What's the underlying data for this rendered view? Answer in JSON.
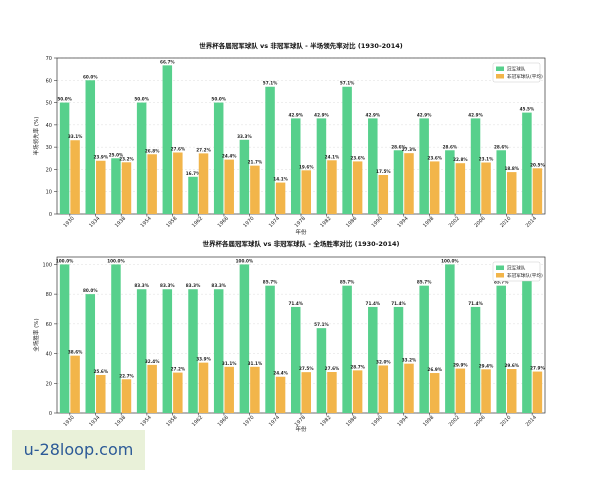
{
  "watermark": "u-28loop.com",
  "chart_data": [
    {
      "type": "bar",
      "title": "世界杯各届冠军球队 vs 非冠军球队 - 半场领先率对比 (1930-2014)",
      "xlabel": "年份",
      "ylabel": "半场领先率 (%)",
      "ylim": [
        0,
        70
      ],
      "yticks": [
        0,
        10,
        20,
        30,
        40,
        50,
        60,
        70
      ],
      "grid": true,
      "legend_position": "top-right",
      "categories": [
        "1930",
        "1934",
        "1938",
        "1954",
        "1958",
        "1962",
        "1966",
        "1970",
        "1974",
        "1978",
        "1982",
        "1986",
        "1990",
        "1994",
        "1998",
        "2002",
        "2006",
        "2010",
        "2014"
      ],
      "series": [
        {
          "name": "冠军球队",
          "color": "#57d08c",
          "values": [
            50.0,
            60.0,
            25.0,
            50.0,
            66.7,
            16.7,
            50.0,
            33.3,
            57.1,
            42.9,
            42.9,
            57.1,
            42.9,
            28.6,
            42.9,
            28.6,
            42.9,
            28.6,
            45.5
          ],
          "labels": [
            "50.0%",
            "60.0%",
            "25.0%",
            "50.0%",
            "66.7%",
            "16.7%",
            "50.0%",
            "33.3%",
            "57.1%",
            "42.9%",
            "42.9%",
            "57.1%",
            "42.9%",
            "28.6%",
            "42.9%",
            "28.6%",
            "42.9%",
            "28.6%",
            "45.5%"
          ]
        },
        {
          "name": "非冠军球队(平均)",
          "color": "#f2b54a",
          "values": [
            33.1,
            23.9,
            23.2,
            26.8,
            27.6,
            27.2,
            24.4,
            21.7,
            14.1,
            19.6,
            24.1,
            23.6,
            17.5,
            27.3,
            23.6,
            22.8,
            23.1,
            18.8,
            20.5
          ],
          "labels": [
            "33.1%",
            "23.9%",
            "23.2%",
            "26.8%",
            "27.6%",
            "27.2%",
            "24.4%",
            "21.7%",
            "14.1%",
            "19.6%",
            "24.1%",
            "23.6%",
            "17.5%",
            "27.3%",
            "23.6%",
            "22.8%",
            "23.1%",
            "18.8%",
            "20.5%"
          ]
        }
      ]
    },
    {
      "type": "bar",
      "title": "世界杯各届冠军球队 vs 非冠军球队 - 全场胜率对比 (1930-2014)",
      "xlabel": "年份",
      "ylabel": "全场胜率 (%)",
      "ylim": [
        0,
        105
      ],
      "yticks": [
        0,
        20,
        40,
        60,
        80,
        100
      ],
      "grid": true,
      "legend_position": "top-right",
      "categories": [
        "1930",
        "1934",
        "1938",
        "1954",
        "1958",
        "1962",
        "1966",
        "1970",
        "1974",
        "1978",
        "1982",
        "1986",
        "1990",
        "1994",
        "1998",
        "2002",
        "2006",
        "2010",
        "2014"
      ],
      "series": [
        {
          "name": "冠军球队",
          "color": "#57d08c",
          "values": [
            100.0,
            80.0,
            100.0,
            83.3,
            83.3,
            83.3,
            83.3,
            100.0,
            85.7,
            71.4,
            57.1,
            85.7,
            71.4,
            71.4,
            85.7,
            100.0,
            71.4,
            85.7,
            90.9
          ],
          "labels": [
            "100.0%",
            "80.0%",
            "100.0%",
            "83.3%",
            "83.3%",
            "83.3%",
            "83.3%",
            "100.0%",
            "85.7%",
            "71.4%",
            "57.1%",
            "85.7%",
            "71.4%",
            "71.4%",
            "85.7%",
            "100.0%",
            "71.4%",
            "85.7%",
            "90.9%"
          ]
        },
        {
          "name": "非冠军球队(平均)",
          "color": "#f2b54a",
          "values": [
            38.6,
            25.6,
            22.7,
            32.4,
            27.2,
            33.9,
            31.1,
            31.1,
            24.4,
            27.5,
            27.6,
            28.7,
            32.0,
            33.2,
            26.9,
            29.9,
            29.4,
            29.6,
            27.9
          ],
          "labels": [
            "38.6%",
            "25.6%",
            "22.7%",
            "32.4%",
            "27.2%",
            "33.9%",
            "31.1%",
            "31.1%",
            "24.4%",
            "27.5%",
            "27.6%",
            "28.7%",
            "32.0%",
            "33.2%",
            "26.9%",
            "29.9%",
            "29.4%",
            "29.6%",
            "27.9%"
          ]
        }
      ]
    }
  ]
}
